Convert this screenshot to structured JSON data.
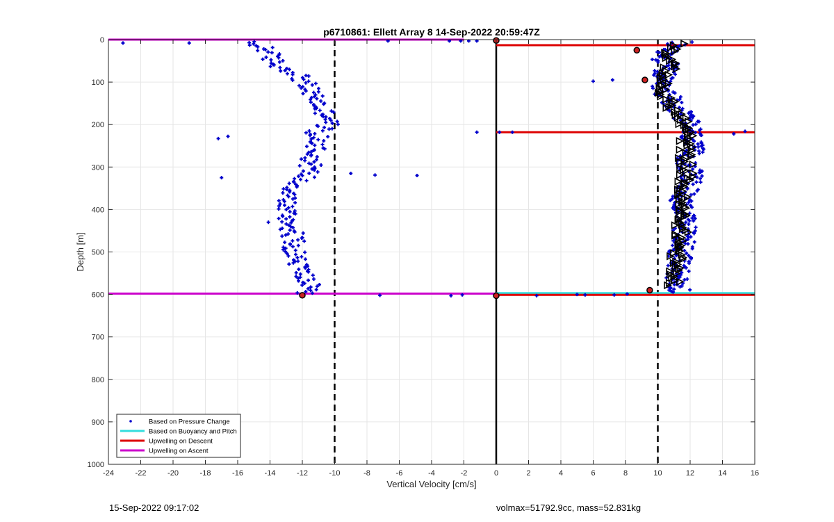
{
  "footer": {
    "timestamp": "15-Sep-2022 09:17:02",
    "ballast_info": "volmax=51792.9cc, mass=52.831kg"
  },
  "chart_data": {
    "type": "scatter",
    "title": "p6710861: Ellett Array 8 14-Sep-2022 20:59:47Z",
    "xlabel": "Vertical Velocity [cm/s]",
    "ylabel": "Depth [m]",
    "xlim": [
      -24,
      16
    ],
    "ylim": [
      0,
      1000
    ],
    "y_reversed": true,
    "grid": true,
    "x_ticks": [
      "-24",
      "-22",
      "-20",
      "-18",
      "-16",
      "-14",
      "-12",
      "-10",
      "-8",
      "-6",
      "-4",
      "-2",
      "0",
      "2",
      "4",
      "6",
      "8",
      "10",
      "12",
      "14",
      "16"
    ],
    "y_ticks": [
      "0",
      "100",
      "200",
      "300",
      "400",
      "500",
      "600",
      "700",
      "800",
      "900",
      "1000"
    ],
    "legend": {
      "placement": "bottom-left",
      "entries": [
        {
          "label": "Based on Pressure Change",
          "color": "#0000cc",
          "style": "point"
        },
        {
          "label": "Based on Buoyancy and Pitch",
          "color": "#33dddd",
          "style": "line"
        },
        {
          "label": "Upwelling on Descent",
          "color": "#dd0000",
          "style": "line"
        },
        {
          "label": "Upwelling on Ascent",
          "color": "#cc00cc",
          "style": "line"
        }
      ]
    },
    "reference_lines": [
      {
        "axis": "x",
        "value": -10,
        "style": "dashed",
        "color": "#000000"
      },
      {
        "axis": "x",
        "value": 10,
        "style": "dashed",
        "color": "#000000"
      },
      {
        "axis": "x",
        "value": 0,
        "style": "solid",
        "color": "#000000"
      }
    ],
    "upwelling_on_ascent": [
      {
        "depth": 0,
        "x_from": -24,
        "x_to": -2
      },
      {
        "depth": 598,
        "x_from": -24,
        "x_to": 0
      }
    ],
    "upwelling_on_descent": [
      {
        "depth": 13,
        "x_from": 0,
        "x_to": 16
      },
      {
        "depth": 218,
        "x_from": 0,
        "x_to": 16
      },
      {
        "depth": 601,
        "x_from": 0,
        "x_to": 16
      }
    ],
    "buoyancy_pitch": [
      {
        "depth": 597,
        "x_from": 0,
        "x_to": 16
      }
    ],
    "series": [
      {
        "name": "Based on Pressure Change",
        "color": "#0000cc",
        "profile_ascent": [
          [
            5,
            -15.6
          ],
          [
            20,
            -14.2
          ],
          [
            40,
            -14.0
          ],
          [
            60,
            -13.6
          ],
          [
            80,
            -12.3
          ],
          [
            100,
            -11.9
          ],
          [
            120,
            -11.6
          ],
          [
            140,
            -11.1
          ],
          [
            160,
            -11.0
          ],
          [
            180,
            -10.3
          ],
          [
            200,
            -10.4
          ],
          [
            220,
            -11.2
          ],
          [
            240,
            -11.0
          ],
          [
            260,
            -11.1
          ],
          [
            280,
            -11.4
          ],
          [
            300,
            -11.5
          ],
          [
            320,
            -11.7
          ],
          [
            340,
            -12.3
          ],
          [
            360,
            -12.7
          ],
          [
            380,
            -13.0
          ],
          [
            400,
            -13.0
          ],
          [
            420,
            -12.9
          ],
          [
            440,
            -12.7
          ],
          [
            460,
            -12.6
          ],
          [
            480,
            -12.5
          ],
          [
            500,
            -12.5
          ],
          [
            520,
            -12.3
          ],
          [
            540,
            -12.1
          ],
          [
            560,
            -11.8
          ],
          [
            580,
            -11.6
          ],
          [
            600,
            -11.9
          ]
        ],
        "profile_descent": [
          [
            5,
            11.4
          ],
          [
            20,
            10.8
          ],
          [
            40,
            10.3
          ],
          [
            60,
            10.6
          ],
          [
            80,
            10.4
          ],
          [
            100,
            10.0
          ],
          [
            120,
            10.2
          ],
          [
            140,
            10.9
          ],
          [
            160,
            11.1
          ],
          [
            180,
            11.6
          ],
          [
            200,
            11.9
          ],
          [
            220,
            12.1
          ],
          [
            240,
            12.0
          ],
          [
            260,
            12.1
          ],
          [
            280,
            11.9
          ],
          [
            300,
            11.9
          ],
          [
            320,
            12.1
          ],
          [
            340,
            11.9
          ],
          [
            360,
            11.7
          ],
          [
            380,
            11.5
          ],
          [
            400,
            11.6
          ],
          [
            420,
            11.6
          ],
          [
            440,
            11.7
          ],
          [
            460,
            11.6
          ],
          [
            480,
            11.7
          ],
          [
            500,
            11.4
          ],
          [
            520,
            11.3
          ],
          [
            540,
            11.3
          ],
          [
            560,
            11.2
          ],
          [
            580,
            11.3
          ],
          [
            595,
            11.5
          ]
        ],
        "outliers": [
          [
            8,
            -23.1
          ],
          [
            8,
            -19.0
          ],
          [
            3,
            -6.7
          ],
          [
            3,
            -2.9
          ],
          [
            3,
            -2.2
          ],
          [
            3,
            -1.7
          ],
          [
            3,
            -1.2
          ],
          [
            233,
            -17.2
          ],
          [
            228,
            -16.6
          ],
          [
            325,
            -17.0
          ],
          [
            319,
            -7.5
          ],
          [
            320,
            -4.9
          ],
          [
            315,
            -9.0
          ],
          [
            218,
            -1.2
          ],
          [
            430,
            -14.1
          ],
          [
            602,
            -7.2
          ],
          [
            603,
            -2.8
          ],
          [
            601,
            -2.1
          ],
          [
            98,
            6.0
          ],
          [
            95,
            7.2
          ],
          [
            218,
            0.2
          ],
          [
            218,
            1.0
          ],
          [
            603,
            2.5
          ],
          [
            600,
            5.0
          ],
          [
            601,
            5.5
          ],
          [
            601,
            7.3
          ],
          [
            599,
            8.1
          ],
          [
            222,
            14.7
          ],
          [
            216,
            15.4
          ]
        ]
      },
      {
        "name": "",
        "marker": "triangle",
        "color": "#000000",
        "profile": [
          [
            10,
            11.3
          ],
          [
            40,
            10.5
          ],
          [
            70,
            10.8
          ],
          [
            100,
            10.2
          ],
          [
            130,
            10.3
          ],
          [
            160,
            10.9
          ],
          [
            190,
            11.5
          ],
          [
            220,
            11.8
          ],
          [
            250,
            11.7
          ],
          [
            280,
            11.7
          ],
          [
            310,
            11.8
          ],
          [
            340,
            11.6
          ],
          [
            370,
            11.4
          ],
          [
            400,
            11.4
          ],
          [
            430,
            11.5
          ],
          [
            460,
            11.4
          ],
          [
            490,
            11.3
          ],
          [
            520,
            11.1
          ],
          [
            550,
            11.0
          ],
          [
            580,
            11.0
          ]
        ]
      }
    ],
    "endpoint_markers": [
      {
        "depth": 2,
        "x": 0
      },
      {
        "depth": 602,
        "x": -12.0
      },
      {
        "depth": 603,
        "x": 0
      },
      {
        "depth": 25,
        "x": 8.7
      },
      {
        "depth": 95,
        "x": 9.2
      },
      {
        "depth": 590,
        "x": 9.5
      }
    ]
  }
}
